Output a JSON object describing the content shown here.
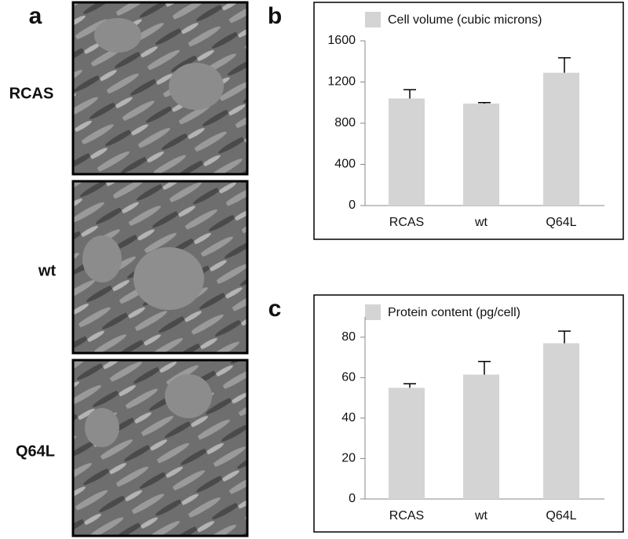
{
  "panels": {
    "a": {
      "label": "a",
      "images": [
        "RCAS",
        "wt",
        "Q64L"
      ]
    }
  },
  "chart_data": [
    {
      "type": "bar",
      "panel": "b",
      "legend": "Cell volume (cubic microns)",
      "categories": [
        "RCAS",
        "wt",
        "Q64L"
      ],
      "values": [
        1040,
        990,
        1290
      ],
      "errors": [
        85,
        10,
        145
      ],
      "color": "#d4d4d4",
      "ylim": [
        0,
        1600
      ],
      "yticks": [
        0,
        400,
        800,
        1200,
        1600
      ]
    },
    {
      "type": "bar",
      "panel": "c",
      "legend": "Protein content (pg/cell)",
      "categories": [
        "RCAS",
        "wt",
        "Q64L"
      ],
      "values": [
        55,
        61.5,
        77
      ],
      "errors": [
        2,
        6.5,
        6
      ],
      "color": "#d4d4d4",
      "ylim": [
        0,
        90
      ],
      "yticks": [
        0,
        20,
        40,
        60,
        80
      ]
    }
  ]
}
